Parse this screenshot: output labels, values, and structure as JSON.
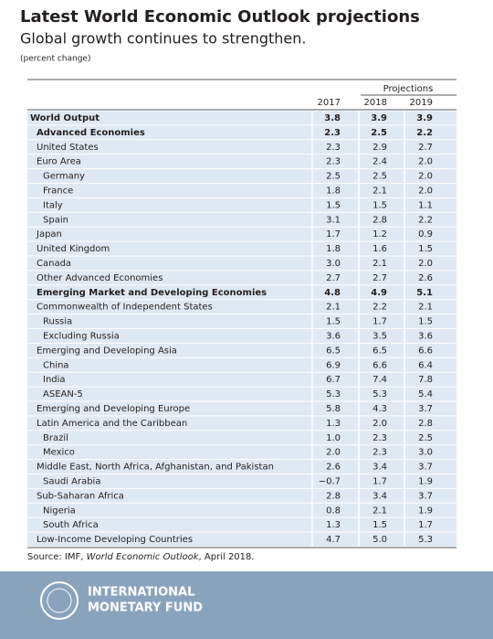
{
  "header": {
    "title": "Latest World Economic Outlook projections",
    "subtitle": "Global growth continues to strengthen.",
    "unit": "(percent change)"
  },
  "table": {
    "projections_label": "Projections",
    "columns": [
      "2017",
      "2018",
      "2019"
    ],
    "rows": [
      [
        "World Output",
        "3.8",
        "3.9",
        "3.9"
      ],
      [
        "Advanced Economies",
        "2.3",
        "2.5",
        "2.2"
      ],
      [
        "United States",
        "2.3",
        "2.9",
        "2.7"
      ],
      [
        "Euro Area",
        "2.3",
        "2.4",
        "2.0"
      ],
      [
        "Germany",
        "2.5",
        "2.5",
        "2.0"
      ],
      [
        "France",
        "1.8",
        "2.1",
        "2.0"
      ],
      [
        "Italy",
        "1.5",
        "1.5",
        "1.1"
      ],
      [
        "Spain",
        "3.1",
        "2.8",
        "2.2"
      ],
      [
        "Japan",
        "1.7",
        "1.2",
        "0.9"
      ],
      [
        "United Kingdom",
        "1.8",
        "1.6",
        "1.5"
      ],
      [
        "Canada",
        "3.0",
        "2.1",
        "2.0"
      ],
      [
        "Other Advanced Economies",
        "2.7",
        "2.7",
        "2.6"
      ],
      [
        "Emerging Market and Developing Economies",
        "4.8",
        "4.9",
        "5.1"
      ],
      [
        "Commonwealth of Independent States",
        "2.1",
        "2.2",
        "2.1"
      ],
      [
        "Russia",
        "1.5",
        "1.7",
        "1.5"
      ],
      [
        "Excluding Russia",
        "3.6",
        "3.5",
        "3.6"
      ],
      [
        "Emerging and Developing Asia",
        "6.5",
        "6.5",
        "6.6"
      ],
      [
        "China",
        "6.9",
        "6.6",
        "6.4"
      ],
      [
        "India",
        "6.7",
        "7.4",
        "7.8"
      ],
      [
        "ASEAN-5",
        "5.3",
        "5.3",
        "5.4"
      ],
      [
        "Emerging and Developing Europe",
        "5.8",
        "4.3",
        "3.7"
      ],
      [
        "Latin America and the Caribbean",
        "1.3",
        "2.0",
        "2.8"
      ],
      [
        "Brazil",
        "1.0",
        "2.3",
        "2.5"
      ],
      [
        "Mexico",
        "2.0",
        "2.3",
        "3.0"
      ],
      [
        "Middle East, North Africa, Afghanistan, and Pakistan",
        "2.6",
        "3.4",
        "3.7"
      ],
      [
        "Saudi Arabia",
        "−0.7",
        "1.7",
        "1.9"
      ],
      [
        "Sub-Saharan Africa",
        "2.8",
        "3.4",
        "3.7"
      ],
      [
        "Nigeria",
        "0.8",
        "2.1",
        "1.9"
      ],
      [
        "South Africa",
        "1.3",
        "1.5",
        "1.7"
      ],
      [
        "Low-Income Developing Countries",
        "4.7",
        "5.0",
        "5.3"
      ]
    ]
  },
  "source": {
    "prefix": "Source: IMF, ",
    "italic": "World Economic Outlook",
    "suffix": ", April 2018."
  },
  "logo": {
    "line1": "INTERNATIONAL",
    "line2": "MONETARY FUND"
  }
}
